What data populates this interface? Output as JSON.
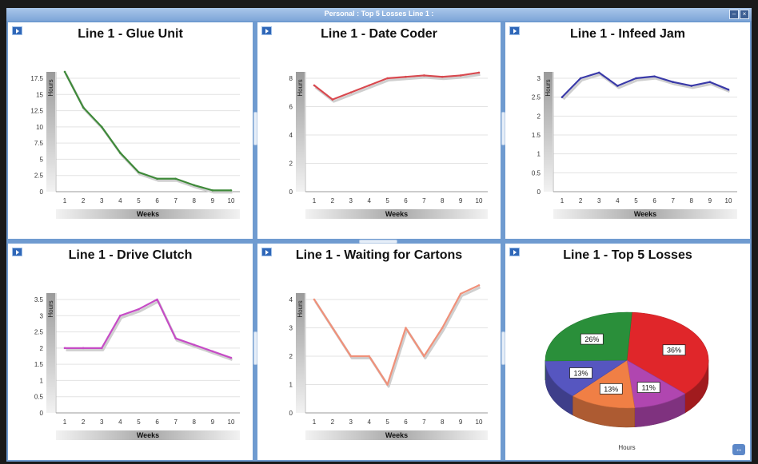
{
  "window": {
    "title": "Personal : Top 5 Losses Line 1 :",
    "minimize_label": "–",
    "close_label": "×"
  },
  "chart_data": [
    {
      "id": "glue",
      "type": "line",
      "title": "Line 1 - Glue Unit",
      "xlabel": "Weeks",
      "ylabel": "Hours",
      "categories": [
        "1",
        "2",
        "3",
        "4",
        "5",
        "6",
        "7",
        "8",
        "9",
        "10"
      ],
      "series": [
        {
          "values": [
            18.5,
            13,
            10,
            6,
            3,
            2,
            2,
            1,
            0.2,
            0.2
          ],
          "color": "#3f8a3a"
        }
      ],
      "ylim": [
        0,
        17.5
      ],
      "yticks": [
        "0",
        "2.5",
        "5",
        "7.5",
        "10",
        "12.5",
        "15",
        "17.5"
      ],
      "grid": true
    },
    {
      "id": "coder",
      "type": "line",
      "title": "Line 1 - Date Coder",
      "xlabel": "Weeks",
      "ylabel": "Hours",
      "categories": [
        "1",
        "2",
        "3",
        "4",
        "5",
        "6",
        "7",
        "8",
        "9",
        "10"
      ],
      "series": [
        {
          "values": [
            7.5,
            6.5,
            7,
            7.5,
            8,
            8.1,
            8.2,
            8.1,
            8.2,
            8.4
          ],
          "color": "#d8494f"
        }
      ],
      "ylim": [
        0,
        8
      ],
      "yticks": [
        "0",
        "2",
        "4",
        "6",
        "8"
      ],
      "grid": true
    },
    {
      "id": "infeed",
      "type": "line",
      "title": "Line 1 - Infeed Jam",
      "xlabel": "Weeks",
      "ylabel": "Hours",
      "categories": [
        "1",
        "2",
        "3",
        "4",
        "5",
        "6",
        "7",
        "8",
        "9",
        "10"
      ],
      "series": [
        {
          "values": [
            2.5,
            3,
            3.15,
            2.8,
            3,
            3.05,
            2.9,
            2.8,
            2.9,
            2.7
          ],
          "color": "#3a3aa8"
        }
      ],
      "ylim": [
        0,
        3
      ],
      "yticks": [
        "0",
        "0.5",
        "1",
        "1.5",
        "2",
        "2.5",
        "3"
      ],
      "grid": true
    },
    {
      "id": "clutch",
      "type": "line",
      "title": "Line 1 - Drive Clutch",
      "xlabel": "Weeks",
      "ylabel": "Hours",
      "categories": [
        "1",
        "2",
        "3",
        "4",
        "5",
        "6",
        "7",
        "8",
        "9",
        "10"
      ],
      "series": [
        {
          "values": [
            2,
            2,
            2,
            3,
            3.2,
            3.5,
            2.3,
            2.1,
            1.9,
            1.7
          ],
          "color": "#c64cc6"
        }
      ],
      "ylim": [
        0,
        3.5
      ],
      "yticks": [
        "0",
        "0.5",
        "1",
        "1.5",
        "2",
        "2.5",
        "3",
        "3.5"
      ],
      "grid": true
    },
    {
      "id": "cartons",
      "type": "line",
      "title": "Line 1 - Waiting for Cartons",
      "xlabel": "Weeks",
      "ylabel": "Hours",
      "categories": [
        "1",
        "2",
        "3",
        "4",
        "5",
        "6",
        "7",
        "8",
        "9",
        "10"
      ],
      "series": [
        {
          "values": [
            4,
            3,
            2,
            2,
            1,
            3,
            2,
            3,
            4.2,
            4.5
          ],
          "color": "#f0917a"
        }
      ],
      "ylim": [
        0,
        4
      ],
      "yticks": [
        "0",
        "1",
        "2",
        "3",
        "4"
      ],
      "grid": true
    },
    {
      "id": "top5",
      "type": "pie",
      "title": "Line 1 - Top 5 Losses",
      "xlabel": "Hours",
      "slices": [
        {
          "label": "36%",
          "value": 36,
          "color": "#e0262a"
        },
        {
          "label": "11%",
          "value": 11,
          "color": "#b046b0"
        },
        {
          "label": "13%",
          "value": 13,
          "color": "#f07f45"
        },
        {
          "label": "13%",
          "value": 13,
          "color": "#5656c0"
        },
        {
          "label": "26%",
          "value": 26,
          "color": "#2a8f3a"
        }
      ]
    }
  ]
}
